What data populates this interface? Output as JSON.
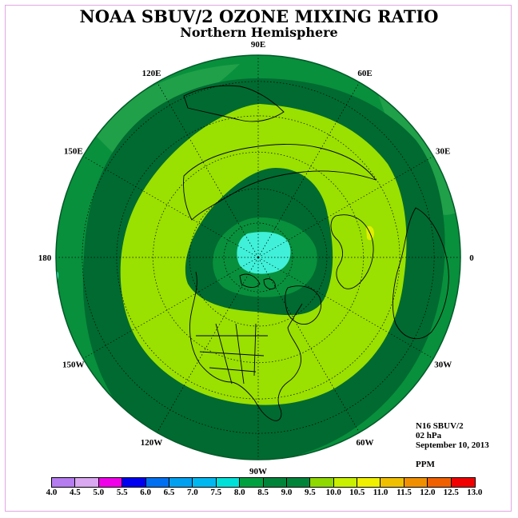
{
  "title": "NOAA SBUV/2 OZONE MIXING RATIO",
  "subtitle": "Northern Hemisphere",
  "longitude_labels": [
    {
      "lon_deg": 90,
      "text": "90E"
    },
    {
      "lon_deg": 60,
      "text": "60E"
    },
    {
      "lon_deg": 30,
      "text": "30E"
    },
    {
      "lon_deg": 0,
      "text": "0"
    },
    {
      "lon_deg": -30,
      "text": "30W"
    },
    {
      "lon_deg": -60,
      "text": "60W"
    },
    {
      "lon_deg": -90,
      "text": "90W"
    },
    {
      "lon_deg": -120,
      "text": "120W"
    },
    {
      "lon_deg": -150,
      "text": "150W"
    },
    {
      "lon_deg": 180,
      "text": "180"
    },
    {
      "lon_deg": 150,
      "text": "150E"
    },
    {
      "lon_deg": 120,
      "text": "120E"
    }
  ],
  "info": {
    "instrument": "N16 SBUV/2",
    "level": "02 hPa",
    "date": "September 10, 2013",
    "units": "PPM"
  },
  "colorbar": {
    "ticks": [
      "4.0",
      "4.5",
      "5.0",
      "5.5",
      "6.0",
      "6.5",
      "7.0",
      "7.5",
      "8.0",
      "8.5",
      "9.0",
      "9.5",
      "10.0",
      "10.5",
      "11.0",
      "11.5",
      "12.0",
      "12.5",
      "13.0"
    ],
    "colors": [
      "#b57cf0",
      "#d9a8f0",
      "#f000e8",
      "#0000f0",
      "#0070f0",
      "#00a0f0",
      "#00b8f0",
      "#00e0d8",
      "#00a040",
      "#00843a",
      "#00843a",
      "#8fd800",
      "#c8f000",
      "#f0f000",
      "#f0c000",
      "#f09000",
      "#f06000",
      "#f00000",
      "#8b5a3c"
    ]
  },
  "map_fill_colors": {
    "outer": "#08903c",
    "dark": "#006a30",
    "lime": "#9ae000",
    "cyan": "#40f0d8",
    "yellow": "#e0f000",
    "coast": "#000000"
  }
}
